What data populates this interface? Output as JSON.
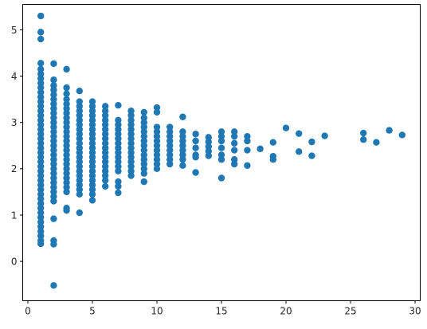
{
  "chart_data": {
    "type": "scatter",
    "title": "",
    "xlabel": "",
    "ylabel": "",
    "xlim": [
      -0.4,
      30.4
    ],
    "ylim": [
      -0.85,
      5.55
    ],
    "xticks": [
      0,
      5,
      10,
      15,
      20,
      25,
      30
    ],
    "yticks": [
      0,
      1,
      2,
      3,
      4,
      5
    ],
    "grid": false,
    "legend": "none",
    "marker_color": "#1f77b4",
    "series": [
      {
        "points": [
          [
            1,
            5.3
          ],
          [
            1,
            4.95
          ],
          [
            1,
            4.8
          ],
          [
            1,
            4.28
          ],
          [
            1,
            4.15
          ],
          [
            1,
            4.05
          ],
          [
            1,
            3.95
          ],
          [
            1,
            3.85
          ],
          [
            1,
            3.75
          ],
          [
            1,
            3.65
          ],
          [
            1,
            3.55
          ],
          [
            1,
            3.45
          ],
          [
            1,
            3.35
          ],
          [
            1,
            3.25
          ],
          [
            1,
            3.15
          ],
          [
            1,
            3.05
          ],
          [
            1,
            2.95
          ],
          [
            1,
            2.85
          ],
          [
            1,
            2.75
          ],
          [
            1,
            2.65
          ],
          [
            1,
            2.55
          ],
          [
            1,
            2.45
          ],
          [
            1,
            2.35
          ],
          [
            1,
            2.25
          ],
          [
            1,
            2.15
          ],
          [
            1,
            2.05
          ],
          [
            1,
            1.95
          ],
          [
            1,
            1.85
          ],
          [
            1,
            1.75
          ],
          [
            1,
            1.65
          ],
          [
            1,
            1.55
          ],
          [
            1,
            1.45
          ],
          [
            1,
            1.35
          ],
          [
            1,
            1.25
          ],
          [
            1,
            1.15
          ],
          [
            1,
            1.05
          ],
          [
            1,
            0.95
          ],
          [
            1,
            0.85
          ],
          [
            1,
            0.75
          ],
          [
            1,
            0.65
          ],
          [
            1,
            0.55
          ],
          [
            1,
            0.45
          ],
          [
            1,
            0.38
          ],
          [
            2,
            4.27
          ],
          [
            2,
            3.92
          ],
          [
            2,
            3.8
          ],
          [
            2,
            3.7
          ],
          [
            2,
            3.6
          ],
          [
            2,
            3.5
          ],
          [
            2,
            3.4
          ],
          [
            2,
            3.3
          ],
          [
            2,
            3.2
          ],
          [
            2,
            3.1
          ],
          [
            2,
            3.0
          ],
          [
            2,
            2.9
          ],
          [
            2,
            2.8
          ],
          [
            2,
            2.7
          ],
          [
            2,
            2.6
          ],
          [
            2,
            2.5
          ],
          [
            2,
            2.4
          ],
          [
            2,
            2.3
          ],
          [
            2,
            2.2
          ],
          [
            2,
            2.1
          ],
          [
            2,
            2.0
          ],
          [
            2,
            1.9
          ],
          [
            2,
            1.8
          ],
          [
            2,
            1.7
          ],
          [
            2,
            1.6
          ],
          [
            2,
            1.5
          ],
          [
            2,
            1.4
          ],
          [
            2,
            1.3
          ],
          [
            2,
            0.92
          ],
          [
            2,
            0.45
          ],
          [
            2,
            0.37
          ],
          [
            2,
            -0.52
          ],
          [
            3,
            4.15
          ],
          [
            3,
            3.75
          ],
          [
            3,
            3.62
          ],
          [
            3,
            3.5
          ],
          [
            3,
            3.4
          ],
          [
            3,
            3.3
          ],
          [
            3,
            3.2
          ],
          [
            3,
            3.1
          ],
          [
            3,
            3.0
          ],
          [
            3,
            2.9
          ],
          [
            3,
            2.8
          ],
          [
            3,
            2.7
          ],
          [
            3,
            2.6
          ],
          [
            3,
            2.5
          ],
          [
            3,
            2.4
          ],
          [
            3,
            2.3
          ],
          [
            3,
            2.2
          ],
          [
            3,
            2.1
          ],
          [
            3,
            2.0
          ],
          [
            3,
            1.9
          ],
          [
            3,
            1.8
          ],
          [
            3,
            1.7
          ],
          [
            3,
            1.6
          ],
          [
            3,
            1.5
          ],
          [
            3,
            1.15
          ],
          [
            3,
            1.1
          ],
          [
            4,
            3.68
          ],
          [
            4,
            3.45
          ],
          [
            4,
            3.35
          ],
          [
            4,
            3.25
          ],
          [
            4,
            3.15
          ],
          [
            4,
            3.05
          ],
          [
            4,
            2.95
          ],
          [
            4,
            2.85
          ],
          [
            4,
            2.75
          ],
          [
            4,
            2.65
          ],
          [
            4,
            2.55
          ],
          [
            4,
            2.45
          ],
          [
            4,
            2.35
          ],
          [
            4,
            2.25
          ],
          [
            4,
            2.15
          ],
          [
            4,
            2.05
          ],
          [
            4,
            1.95
          ],
          [
            4,
            1.85
          ],
          [
            4,
            1.75
          ],
          [
            4,
            1.65
          ],
          [
            4,
            1.55
          ],
          [
            4,
            1.45
          ],
          [
            4,
            1.05
          ],
          [
            5,
            3.45
          ],
          [
            5,
            3.35
          ],
          [
            5,
            3.25
          ],
          [
            5,
            3.15
          ],
          [
            5,
            3.05
          ],
          [
            5,
            2.95
          ],
          [
            5,
            2.85
          ],
          [
            5,
            2.75
          ],
          [
            5,
            2.65
          ],
          [
            5,
            2.55
          ],
          [
            5,
            2.45
          ],
          [
            5,
            2.35
          ],
          [
            5,
            2.25
          ],
          [
            5,
            2.15
          ],
          [
            5,
            2.05
          ],
          [
            5,
            1.95
          ],
          [
            5,
            1.85
          ],
          [
            5,
            1.75
          ],
          [
            5,
            1.65
          ],
          [
            5,
            1.55
          ],
          [
            5,
            1.45
          ],
          [
            5,
            1.32
          ],
          [
            6,
            3.35
          ],
          [
            6,
            3.25
          ],
          [
            6,
            3.15
          ],
          [
            6,
            3.05
          ],
          [
            6,
            2.95
          ],
          [
            6,
            2.85
          ],
          [
            6,
            2.75
          ],
          [
            6,
            2.65
          ],
          [
            6,
            2.55
          ],
          [
            6,
            2.45
          ],
          [
            6,
            2.35
          ],
          [
            6,
            2.25
          ],
          [
            6,
            2.15
          ],
          [
            6,
            2.05
          ],
          [
            6,
            1.95
          ],
          [
            6,
            1.85
          ],
          [
            6,
            1.75
          ],
          [
            6,
            1.62
          ],
          [
            7,
            3.37
          ],
          [
            7,
            3.05
          ],
          [
            7,
            2.95
          ],
          [
            7,
            2.85
          ],
          [
            7,
            2.75
          ],
          [
            7,
            2.65
          ],
          [
            7,
            2.55
          ],
          [
            7,
            2.45
          ],
          [
            7,
            2.35
          ],
          [
            7,
            2.25
          ],
          [
            7,
            2.15
          ],
          [
            7,
            2.05
          ],
          [
            7,
            1.95
          ],
          [
            7,
            1.72
          ],
          [
            7,
            1.62
          ],
          [
            7,
            1.48
          ],
          [
            8,
            3.25
          ],
          [
            8,
            3.15
          ],
          [
            8,
            3.05
          ],
          [
            8,
            2.95
          ],
          [
            8,
            2.85
          ],
          [
            8,
            2.75
          ],
          [
            8,
            2.65
          ],
          [
            8,
            2.55
          ],
          [
            8,
            2.45
          ],
          [
            8,
            2.35
          ],
          [
            8,
            2.25
          ],
          [
            8,
            2.15
          ],
          [
            8,
            2.05
          ],
          [
            8,
            1.95
          ],
          [
            8,
            1.85
          ],
          [
            9,
            3.22
          ],
          [
            9,
            3.1
          ],
          [
            9,
            3.0
          ],
          [
            9,
            2.9
          ],
          [
            9,
            2.8
          ],
          [
            9,
            2.7
          ],
          [
            9,
            2.6
          ],
          [
            9,
            2.5
          ],
          [
            9,
            2.4
          ],
          [
            9,
            2.3
          ],
          [
            9,
            2.2
          ],
          [
            9,
            2.1
          ],
          [
            9,
            2.0
          ],
          [
            9,
            1.9
          ],
          [
            9,
            1.72
          ],
          [
            10,
            3.32
          ],
          [
            10,
            3.22
          ],
          [
            10,
            2.9
          ],
          [
            10,
            2.8
          ],
          [
            10,
            2.7
          ],
          [
            10,
            2.6
          ],
          [
            10,
            2.5
          ],
          [
            10,
            2.4
          ],
          [
            10,
            2.3
          ],
          [
            10,
            2.2
          ],
          [
            10,
            2.1
          ],
          [
            10,
            2.0
          ],
          [
            11,
            2.9
          ],
          [
            11,
            2.8
          ],
          [
            11,
            2.7
          ],
          [
            11,
            2.6
          ],
          [
            11,
            2.5
          ],
          [
            11,
            2.4
          ],
          [
            11,
            2.3
          ],
          [
            11,
            2.2
          ],
          [
            11,
            2.1
          ],
          [
            12,
            3.12
          ],
          [
            12,
            2.8
          ],
          [
            12,
            2.7
          ],
          [
            12,
            2.6
          ],
          [
            12,
            2.5
          ],
          [
            12,
            2.4
          ],
          [
            12,
            2.3
          ],
          [
            12,
            2.2
          ],
          [
            12,
            2.07
          ],
          [
            13,
            2.75
          ],
          [
            13,
            2.6
          ],
          [
            13,
            2.45
          ],
          [
            13,
            2.3
          ],
          [
            13,
            2.25
          ],
          [
            13,
            1.92
          ],
          [
            14,
            2.68
          ],
          [
            14,
            2.58
          ],
          [
            14,
            2.48
          ],
          [
            14,
            2.38
          ],
          [
            14,
            2.28
          ],
          [
            15,
            2.8
          ],
          [
            15,
            2.7
          ],
          [
            15,
            2.6
          ],
          [
            15,
            2.45
          ],
          [
            15,
            2.3
          ],
          [
            15,
            2.2
          ],
          [
            15,
            1.8
          ],
          [
            16,
            2.8
          ],
          [
            16,
            2.7
          ],
          [
            16,
            2.55
          ],
          [
            16,
            2.4
          ],
          [
            16,
            2.2
          ],
          [
            16,
            2.1
          ],
          [
            17,
            2.7
          ],
          [
            17,
            2.6
          ],
          [
            17,
            2.4
          ],
          [
            17,
            2.07
          ],
          [
            18,
            2.43
          ],
          [
            19,
            2.57
          ],
          [
            19,
            2.27
          ],
          [
            19,
            2.2
          ],
          [
            20,
            2.88
          ],
          [
            21,
            2.76
          ],
          [
            21,
            2.37
          ],
          [
            22,
            2.58
          ],
          [
            22,
            2.28
          ],
          [
            23,
            2.71
          ],
          [
            26,
            2.77
          ],
          [
            26,
            2.63
          ],
          [
            27,
            2.57
          ],
          [
            28,
            2.83
          ],
          [
            29,
            2.73
          ]
        ]
      }
    ]
  }
}
